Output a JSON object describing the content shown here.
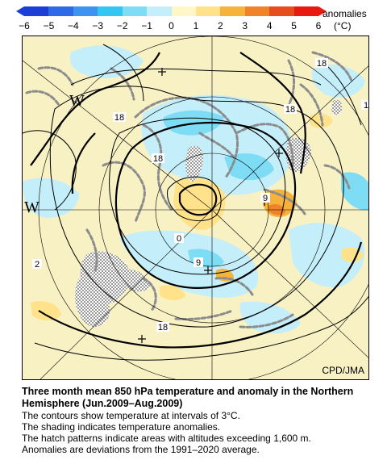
{
  "colorbar": {
    "tick_labels": [
      "−6",
      "−5",
      "−4",
      "−3",
      "−2",
      "−1",
      "0",
      "1",
      "2",
      "3",
      "4",
      "5",
      "6"
    ],
    "unit_line1": "anomalies",
    "unit_line2": "(°C)",
    "colors": [
      "#1b3fd6",
      "#2f6ae6",
      "#3d94f0",
      "#33c6f2",
      "#7edcf5",
      "#c4eefa",
      "#fff7c8",
      "#ffe28a",
      "#f5b33c",
      "#f0822a",
      "#e84b1c",
      "#e8190e"
    ]
  },
  "map": {
    "credit": "CPD/JMA",
    "contour_labels": [
      "18",
      "18",
      "18",
      "18",
      "18",
      "0",
      "9",
      "9",
      "2",
      "1"
    ],
    "pressure_labels": [
      "W",
      "W"
    ]
  },
  "caption": {
    "title_line1": "Three month mean 850 hPa temperature and anomaly in the Northern",
    "title_line2": "Hemisphere (Jun.2009–Aug.2009)",
    "lines": [
      "The contours show temperature at intervals of 3°C.",
      "The shading indicates temperature anomalies.",
      "The hatch patterns indicate areas with altitudes exceeding 1,600 m.",
      "Anomalies are deviations from the 1991–2020 average."
    ]
  }
}
